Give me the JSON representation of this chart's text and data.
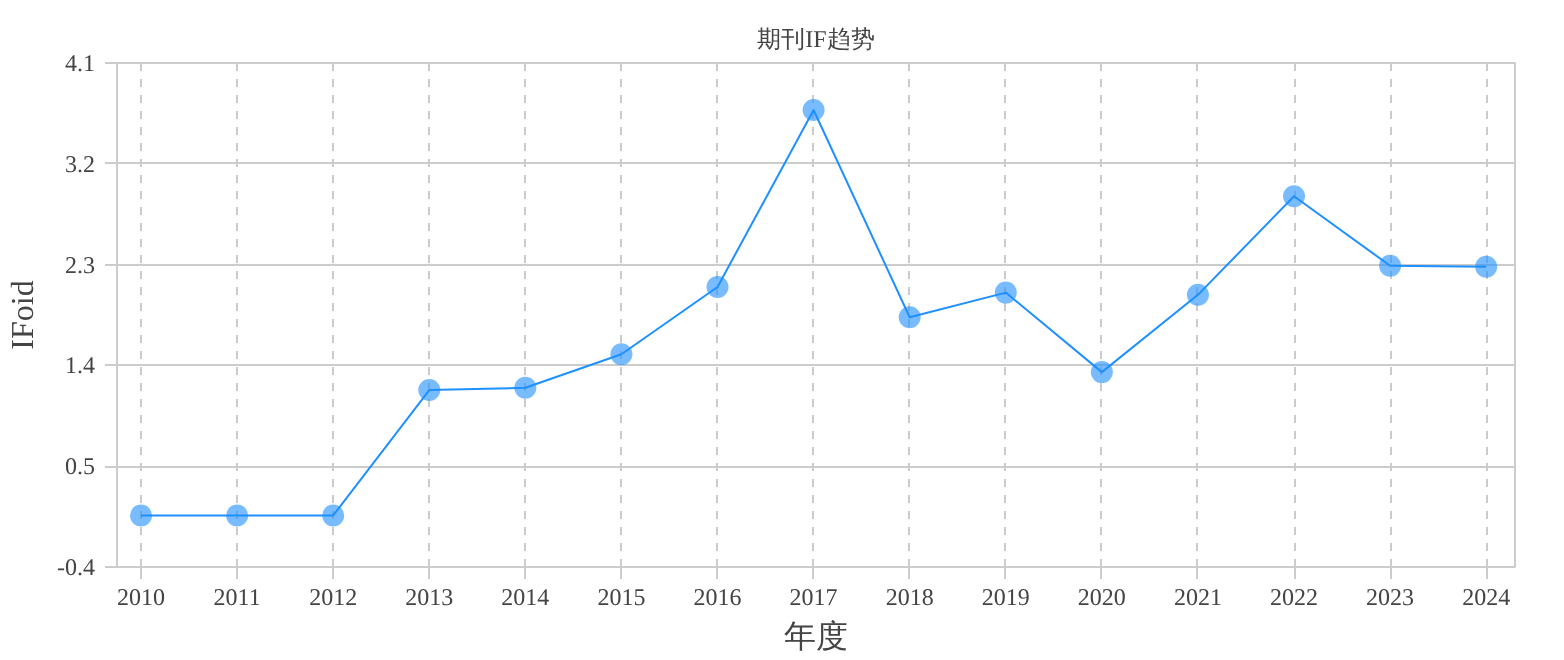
{
  "chart_data": {
    "type": "line",
    "title": "期刊IF趋势",
    "xlabel": "年度",
    "ylabel": "IFoid",
    "x": [
      2010,
      2011,
      2012,
      2013,
      2014,
      2015,
      2016,
      2017,
      2018,
      2019,
      2020,
      2021,
      2022,
      2023,
      2024
    ],
    "series": [
      {
        "color": "#1e90ff",
        "values": [
          0.06,
          0.06,
          0.06,
          1.18,
          1.2,
          1.5,
          2.1,
          3.68,
          1.83,
          2.05,
          1.34,
          2.03,
          2.91,
          2.29,
          2.28
        ]
      }
    ],
    "xlim": [
      2009.75,
      2024.3
    ],
    "xticks": [
      2010,
      2011,
      2012,
      2013,
      2014,
      2015,
      2016,
      2017,
      2018,
      2019,
      2020,
      2021,
      2022,
      2023,
      2024
    ],
    "ylim": [
      -0.4,
      4.1
    ],
    "yticks": [
      -0.4,
      0.5,
      1.4,
      2.3,
      3.2,
      4.1
    ],
    "grid": true,
    "marker": "circle",
    "line_style": "solid"
  }
}
